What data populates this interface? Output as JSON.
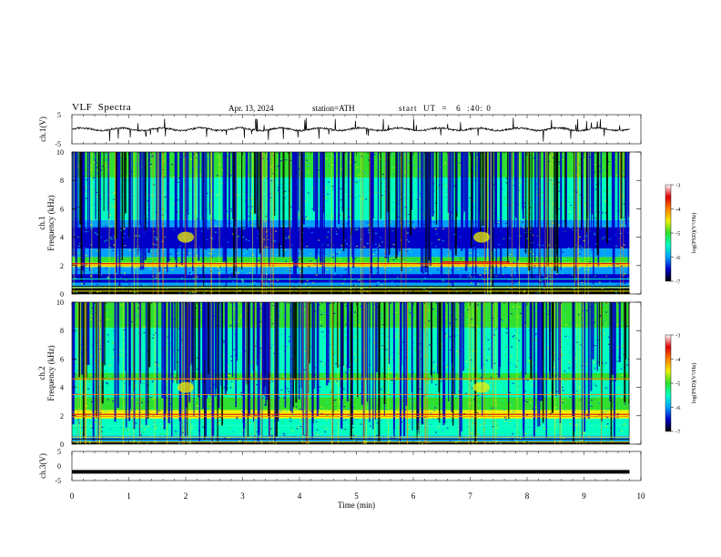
{
  "header": {
    "title": "VLF  Spectra",
    "date": "Apr. 13, 2024",
    "station": "station=ATH",
    "start": "start  UT  =   6  :40: 0"
  },
  "colors": {
    "colormap": [
      "#000000",
      "#0000c8",
      "#00a0ff",
      "#00ffc0",
      "#30e030",
      "#f0f000",
      "#ff8000",
      "#e00000",
      "#ffffff"
    ],
    "trace": "#000000"
  },
  "chart_data": [
    {
      "type": "line",
      "panel": "ch1-waveform",
      "ylabel": "ch.1(V)",
      "ylim": [
        -5,
        5
      ],
      "y_tick_labels": [
        "5",
        "-5"
      ],
      "xlim": [
        0,
        10
      ],
      "description_values": {
        "baseline": 0,
        "typical_amplitude": 0.5
      }
    },
    {
      "type": "heatmap",
      "panel": "ch1-spectrogram",
      "ylabel": "ch.1\nFrequency (kHz)",
      "ylabel_line1": "ch.1",
      "ylabel_line2": "Frequency  (kHz)",
      "ylim": [
        0,
        10
      ],
      "y_tick_labels": [
        "0",
        "2",
        "4",
        "6",
        "8",
        "10"
      ],
      "xlim": [
        0,
        10
      ],
      "colorbar": {
        "label": "log(PSD)(V²/Hz)",
        "range": [
          -7,
          -3
        ],
        "tick_labels": [
          "-3",
          "-4",
          "-5",
          "-6",
          "-7"
        ]
      }
    },
    {
      "type": "heatmap",
      "panel": "ch2-spectrogram",
      "ylabel_line1": "ch.2",
      "ylabel_line2": "Frequency  (kHz)",
      "ylim": [
        0,
        10
      ],
      "y_tick_labels": [
        "0",
        "2",
        "4",
        "6",
        "8",
        "10"
      ],
      "xlim": [
        0,
        10
      ],
      "colorbar": {
        "label": "log(PSD)(V²/Hz)",
        "range": [
          -7,
          -3
        ],
        "tick_labels": [
          "-3",
          "-4",
          "-5",
          "-6",
          "-7"
        ]
      }
    },
    {
      "type": "line",
      "panel": "ch3-waveform",
      "ylabel": "ch.3(V)",
      "ylim": [
        -5,
        5
      ],
      "y_tick_labels": [
        "5",
        "0",
        "-5"
      ],
      "xlim": [
        0,
        10
      ],
      "description_values": {
        "baseline": -2
      }
    }
  ],
  "x_axis": {
    "label": "Time  (min)",
    "tick_labels": [
      "0",
      "1",
      "2",
      "3",
      "4",
      "5",
      "6",
      "7",
      "8",
      "9",
      "10"
    ],
    "range": [
      0,
      10
    ],
    "data_end": 9.8
  },
  "colorbar_label": "log(PSD)(V²/Hz)"
}
